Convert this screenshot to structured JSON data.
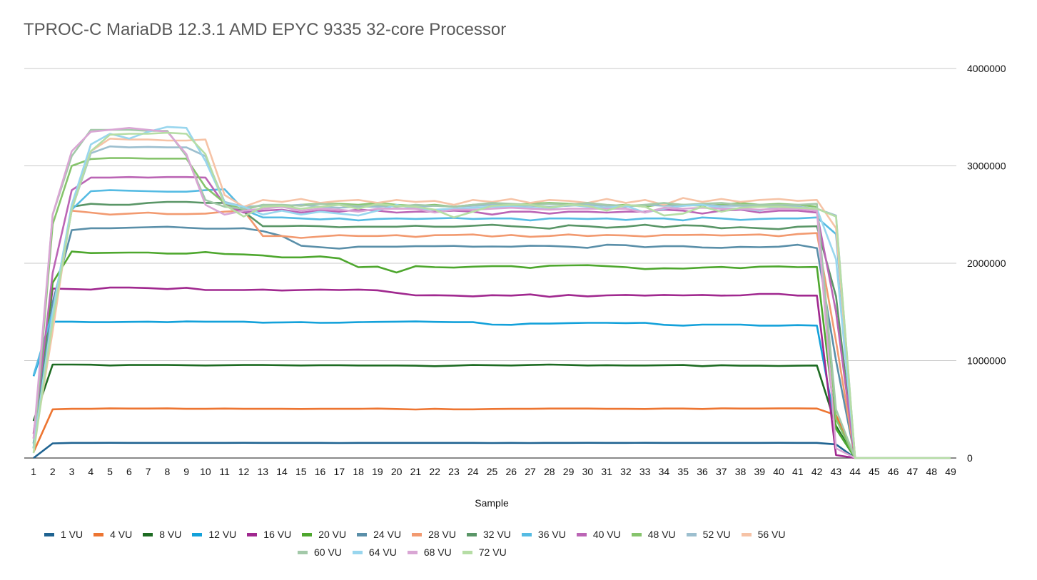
{
  "chart_data": {
    "type": "line",
    "title": "TPROC-C MariaDB 12.3.1 AMD EPYC 9335 32-core Processor",
    "xlabel": "Sample",
    "ylabel": "",
    "ylim": [
      0,
      4000000
    ],
    "yticks": [
      "0",
      "1000000",
      "2000000",
      "3000000",
      "4000000"
    ],
    "y_axis_side": "right",
    "grid": true,
    "legend_placement": "bottom",
    "x": [
      1,
      2,
      3,
      4,
      5,
      6,
      7,
      8,
      9,
      10,
      11,
      12,
      13,
      14,
      15,
      16,
      17,
      18,
      19,
      20,
      21,
      22,
      23,
      24,
      25,
      26,
      27,
      28,
      29,
      30,
      31,
      32,
      33,
      34,
      35,
      36,
      37,
      38,
      39,
      40,
      41,
      42,
      43,
      44,
      45,
      46,
      47,
      48,
      49
    ],
    "series": [
      {
        "name": "1 VU",
        "color": "#1f6391",
        "values": [
          0,
          150000,
          155000,
          155000,
          156000,
          155000,
          155000,
          155000,
          155000,
          155000,
          155000,
          156000,
          155000,
          155000,
          155000,
          155000,
          154000,
          155000,
          155000,
          155000,
          155000,
          155000,
          155000,
          155000,
          154000,
          155000,
          154000,
          155000,
          155000,
          156000,
          155000,
          155000,
          156000,
          155000,
          155000,
          155000,
          155000,
          155000,
          155000,
          156000,
          155000,
          155000,
          140000,
          0,
          0,
          0,
          0,
          0,
          0
        ]
      },
      {
        "name": "4 VU",
        "color": "#ed7531",
        "values": [
          60000,
          500000,
          505000,
          505000,
          510000,
          508000,
          508000,
          510000,
          505000,
          505000,
          508000,
          505000,
          505000,
          505000,
          503000,
          505000,
          505000,
          505000,
          508000,
          503000,
          498000,
          505000,
          500000,
          500000,
          503000,
          505000,
          505000,
          508000,
          508000,
          508000,
          505000,
          505000,
          503000,
          508000,
          508000,
          503000,
          510000,
          508000,
          508000,
          510000,
          510000,
          508000,
          440000,
          0,
          0,
          0,
          0,
          0,
          0
        ]
      },
      {
        "name": "8 VU",
        "color": "#1d6b22",
        "values": [
          380000,
          960000,
          960000,
          958000,
          950000,
          955000,
          955000,
          955000,
          953000,
          950000,
          953000,
          955000,
          955000,
          953000,
          950000,
          953000,
          953000,
          950000,
          950000,
          950000,
          948000,
          943000,
          948000,
          955000,
          953000,
          950000,
          955000,
          960000,
          955000,
          950000,
          953000,
          950000,
          950000,
          953000,
          955000,
          943000,
          953000,
          948000,
          948000,
          945000,
          948000,
          950000,
          330000,
          0,
          0,
          0,
          0,
          0,
          0
        ]
      },
      {
        "name": "12 VU",
        "color": "#13a1da",
        "values": [
          840000,
          1400000,
          1400000,
          1395000,
          1395000,
          1398000,
          1400000,
          1395000,
          1402000,
          1400000,
          1400000,
          1400000,
          1390000,
          1393000,
          1395000,
          1388000,
          1390000,
          1395000,
          1398000,
          1400000,
          1402000,
          1398000,
          1395000,
          1395000,
          1370000,
          1368000,
          1380000,
          1380000,
          1385000,
          1388000,
          1388000,
          1385000,
          1388000,
          1368000,
          1360000,
          1370000,
          1370000,
          1370000,
          1360000,
          1360000,
          1365000,
          1360000,
          300000,
          0,
          0,
          0,
          0,
          0,
          0
        ]
      },
      {
        "name": "16 VU",
        "color": "#a0288f",
        "values": [
          250000,
          1740000,
          1735000,
          1730000,
          1750000,
          1750000,
          1745000,
          1735000,
          1748000,
          1725000,
          1725000,
          1725000,
          1730000,
          1720000,
          1725000,
          1730000,
          1725000,
          1730000,
          1722000,
          1695000,
          1670000,
          1672000,
          1668000,
          1660000,
          1672000,
          1668000,
          1680000,
          1655000,
          1675000,
          1660000,
          1670000,
          1675000,
          1668000,
          1675000,
          1670000,
          1675000,
          1668000,
          1670000,
          1685000,
          1685000,
          1668000,
          1668000,
          30000,
          0,
          0,
          0,
          0,
          0,
          0
        ]
      },
      {
        "name": "20 VU",
        "color": "#4ea72e",
        "values": [
          100000,
          1800000,
          2120000,
          2105000,
          2108000,
          2110000,
          2110000,
          2100000,
          2100000,
          2115000,
          2095000,
          2090000,
          2080000,
          2060000,
          2060000,
          2070000,
          2050000,
          1960000,
          1965000,
          1905000,
          1970000,
          1960000,
          1955000,
          1965000,
          1970000,
          1970000,
          1952000,
          1975000,
          1978000,
          1980000,
          1970000,
          1960000,
          1940000,
          1948000,
          1945000,
          1955000,
          1962000,
          1950000,
          1965000,
          1968000,
          1960000,
          1962000,
          300000,
          0,
          0,
          0,
          0,
          0,
          0
        ]
      },
      {
        "name": "24 VU",
        "color": "#5a8fa9",
        "values": [
          150000,
          1600000,
          2340000,
          2360000,
          2360000,
          2365000,
          2370000,
          2375000,
          2365000,
          2355000,
          2355000,
          2360000,
          2330000,
          2280000,
          2180000,
          2165000,
          2150000,
          2170000,
          2170000,
          2170000,
          2175000,
          2175000,
          2178000,
          2170000,
          2172000,
          2170000,
          2180000,
          2178000,
          2170000,
          2158000,
          2190000,
          2185000,
          2165000,
          2175000,
          2175000,
          2162000,
          2158000,
          2168000,
          2165000,
          2170000,
          2190000,
          2155000,
          1000000,
          0,
          0,
          0,
          0,
          0,
          0
        ]
      },
      {
        "name": "28 VU",
        "color": "#f29a70",
        "values": [
          100000,
          1500000,
          2540000,
          2520000,
          2500000,
          2510000,
          2520000,
          2505000,
          2505000,
          2510000,
          2530000,
          2540000,
          2280000,
          2280000,
          2260000,
          2275000,
          2288000,
          2280000,
          2280000,
          2288000,
          2270000,
          2288000,
          2290000,
          2295000,
          2275000,
          2290000,
          2272000,
          2280000,
          2295000,
          2280000,
          2290000,
          2285000,
          2275000,
          2290000,
          2290000,
          2292000,
          2285000,
          2290000,
          2295000,
          2278000,
          2300000,
          2310000,
          1200000,
          0,
          0,
          0,
          0,
          0,
          0
        ]
      },
      {
        "name": "32 VU",
        "color": "#5a9667",
        "values": [
          150000,
          1500000,
          2580000,
          2610000,
          2600000,
          2600000,
          2620000,
          2630000,
          2630000,
          2620000,
          2620000,
          2530000,
          2380000,
          2380000,
          2385000,
          2380000,
          2370000,
          2375000,
          2375000,
          2375000,
          2385000,
          2375000,
          2375000,
          2385000,
          2395000,
          2380000,
          2370000,
          2355000,
          2390000,
          2380000,
          2365000,
          2375000,
          2395000,
          2370000,
          2390000,
          2385000,
          2360000,
          2370000,
          2360000,
          2350000,
          2375000,
          2380000,
          1660000,
          0,
          0,
          0,
          0,
          0,
          0
        ]
      },
      {
        "name": "36 VU",
        "color": "#55bbe3",
        "values": [
          850000,
          1500000,
          2550000,
          2740000,
          2750000,
          2745000,
          2740000,
          2735000,
          2735000,
          2750000,
          2760000,
          2550000,
          2470000,
          2470000,
          2460000,
          2450000,
          2460000,
          2440000,
          2455000,
          2460000,
          2455000,
          2460000,
          2465000,
          2455000,
          2460000,
          2460000,
          2440000,
          2460000,
          2460000,
          2455000,
          2460000,
          2445000,
          2460000,
          2460000,
          2440000,
          2470000,
          2460000,
          2445000,
          2455000,
          2460000,
          2460000,
          2470000,
          2300000,
          0,
          0,
          0,
          0,
          0,
          0
        ]
      },
      {
        "name": "40 VU",
        "color": "#bb65b5",
        "values": [
          200000,
          1900000,
          2750000,
          2880000,
          2880000,
          2885000,
          2880000,
          2885000,
          2885000,
          2880000,
          2600000,
          2520000,
          2540000,
          2550000,
          2520000,
          2540000,
          2530000,
          2550000,
          2540000,
          2520000,
          2530000,
          2530000,
          2540000,
          2530000,
          2500000,
          2530000,
          2530000,
          2510000,
          2530000,
          2530000,
          2520000,
          2530000,
          2530000,
          2550000,
          2540000,
          2510000,
          2540000,
          2550000,
          2520000,
          2540000,
          2540000,
          2520000,
          1500000,
          0,
          0,
          0,
          0,
          0,
          0
        ]
      },
      {
        "name": "48 VU",
        "color": "#86c46c",
        "values": [
          100000,
          2400000,
          3000000,
          3070000,
          3080000,
          3080000,
          3075000,
          3075000,
          3075000,
          2780000,
          2620000,
          2550000,
          2600000,
          2580000,
          2600000,
          2610000,
          2610000,
          2600000,
          2620000,
          2600000,
          2590000,
          2600000,
          2580000,
          2600000,
          2610000,
          2600000,
          2610000,
          2620000,
          2610000,
          2600000,
          2590000,
          2600000,
          2580000,
          2610000,
          2600000,
          2590000,
          2600000,
          2620000,
          2600000,
          2610000,
          2600000,
          2580000,
          400000,
          0,
          0,
          0,
          0,
          0,
          0
        ]
      },
      {
        "name": "52 VU",
        "color": "#9dbfcf",
        "values": [
          100000,
          1400000,
          2550000,
          3130000,
          3200000,
          3190000,
          3195000,
          3190000,
          3190000,
          3100000,
          2630000,
          2580000,
          2590000,
          2590000,
          2600000,
          2580000,
          2570000,
          2580000,
          2580000,
          2590000,
          2580000,
          2590000,
          2580000,
          2590000,
          2600000,
          2590000,
          2590000,
          2580000,
          2590000,
          2600000,
          2590000,
          2580000,
          2600000,
          2590000,
          2590000,
          2600000,
          2590000,
          2590000,
          2580000,
          2600000,
          2580000,
          2560000,
          2490000,
          0,
          0,
          0,
          0,
          0,
          0
        ]
      },
      {
        "name": "56 VU",
        "color": "#f6c3a6",
        "values": [
          100000,
          1300000,
          2600000,
          3150000,
          3280000,
          3270000,
          3270000,
          3260000,
          3260000,
          3270000,
          2700000,
          2580000,
          2650000,
          2630000,
          2660000,
          2620000,
          2640000,
          2650000,
          2620000,
          2650000,
          2630000,
          2640000,
          2600000,
          2650000,
          2630000,
          2660000,
          2620000,
          2650000,
          2640000,
          2620000,
          2660000,
          2620000,
          2650000,
          2600000,
          2670000,
          2630000,
          2660000,
          2630000,
          2650000,
          2660000,
          2640000,
          2650000,
          2360000,
          0,
          0,
          0,
          0,
          0,
          0
        ]
      },
      {
        "name": "60 VU",
        "color": "#a3c9a9",
        "values": [
          100000,
          2500000,
          3100000,
          3370000,
          3370000,
          3370000,
          3360000,
          3360000,
          3100000,
          2650000,
          2580000,
          2560000,
          2600000,
          2600000,
          2590000,
          2610000,
          2600000,
          2590000,
          2600000,
          2580000,
          2600000,
          2590000,
          2580000,
          2600000,
          2620000,
          2610000,
          2600000,
          2610000,
          2600000,
          2620000,
          2600000,
          2590000,
          2600000,
          2620000,
          2600000,
          2610000,
          2620000,
          2600000,
          2600000,
          2600000,
          2600000,
          2610000,
          500000,
          0,
          0,
          0,
          0,
          0,
          0
        ]
      },
      {
        "name": "64 VU",
        "color": "#99d6ee",
        "values": [
          100000,
          1500000,
          2600000,
          3220000,
          3330000,
          3280000,
          3350000,
          3400000,
          3390000,
          3050000,
          2620000,
          2580000,
          2500000,
          2540000,
          2500000,
          2530000,
          2510000,
          2490000,
          2540000,
          2600000,
          2560000,
          2550000,
          2560000,
          2570000,
          2580000,
          2580000,
          2570000,
          2560000,
          2600000,
          2580000,
          2570000,
          2590000,
          2520000,
          2560000,
          2590000,
          2600000,
          2570000,
          2560000,
          2540000,
          2580000,
          2570000,
          2560000,
          2040000,
          0,
          0,
          0,
          0,
          0,
          0
        ]
      },
      {
        "name": "68 VU",
        "color": "#d9a6d4",
        "values": [
          200000,
          2500000,
          3150000,
          3350000,
          3370000,
          3390000,
          3370000,
          3350000,
          3120000,
          2600000,
          2500000,
          2540000,
          2560000,
          2580000,
          2540000,
          2560000,
          2550000,
          2530000,
          2560000,
          2560000,
          2560000,
          2520000,
          2550000,
          2550000,
          2560000,
          2570000,
          2560000,
          2550000,
          2560000,
          2560000,
          2560000,
          2560000,
          2520000,
          2570000,
          2560000,
          2570000,
          2560000,
          2560000,
          2550000,
          2560000,
          2560000,
          2540000,
          100000,
          0,
          0,
          0,
          0,
          0,
          0
        ]
      },
      {
        "name": "72 VU",
        "color": "#b6dda5",
        "values": [
          50000,
          1400000,
          2550000,
          3150000,
          3320000,
          3330000,
          3330000,
          3340000,
          3330000,
          3120000,
          2600000,
          2480000,
          2580000,
          2590000,
          2560000,
          2580000,
          2600000,
          2560000,
          2610000,
          2590000,
          2580000,
          2550000,
          2470000,
          2530000,
          2590000,
          2600000,
          2600000,
          2570000,
          2600000,
          2590000,
          2540000,
          2600000,
          2580000,
          2490000,
          2510000,
          2580000,
          2530000,
          2570000,
          2580000,
          2580000,
          2570000,
          2560000,
          2480000,
          0,
          0,
          0,
          0,
          0,
          0
        ]
      }
    ]
  }
}
